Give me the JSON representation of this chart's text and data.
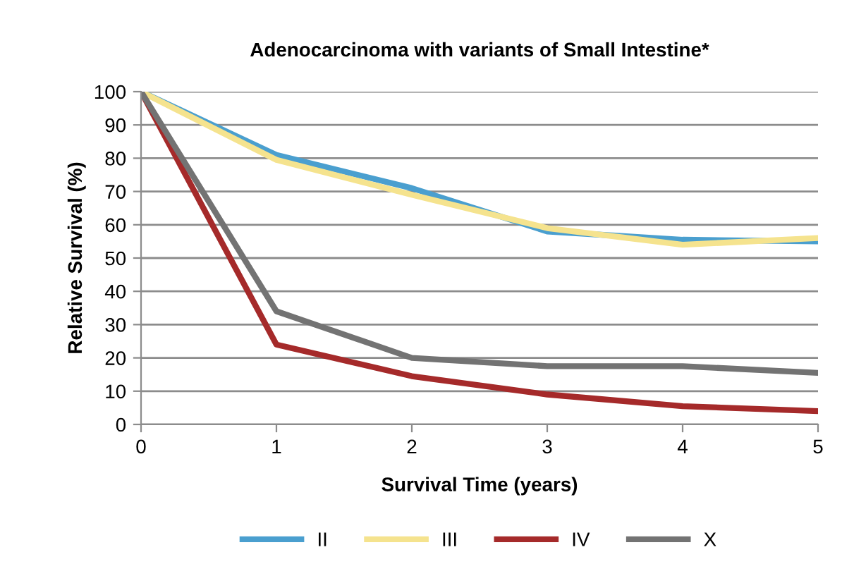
{
  "chart_data": {
    "type": "line",
    "title": "Adenocarcinoma with variants of Small Intestine*",
    "xlabel": "Survival Time (years)",
    "ylabel": "Relative Survival (%)",
    "x": [
      0,
      1,
      2,
      3,
      4,
      5
    ],
    "series": [
      {
        "name": "II",
        "color": "#4a9fcf",
        "values": [
          100,
          81,
          71,
          58,
          55.5,
          55
        ]
      },
      {
        "name": "III",
        "color": "#f5e38e",
        "values": [
          100,
          79.5,
          69,
          59,
          54,
          56
        ]
      },
      {
        "name": "IV",
        "color": "#a52a2a",
        "values": [
          100,
          24,
          14.5,
          9,
          5.5,
          4
        ]
      },
      {
        "name": "X",
        "color": "#737373",
        "values": [
          100,
          34,
          20,
          17.5,
          17.5,
          15.5
        ]
      }
    ],
    "xlim": [
      0,
      5
    ],
    "xticks": [
      0,
      1,
      2,
      3,
      4,
      5
    ],
    "ylim": [
      0,
      100
    ],
    "yticks": [
      0,
      10,
      20,
      30,
      40,
      50,
      60,
      70,
      80,
      90,
      100
    ],
    "grid": "y",
    "legend": "bottom",
    "marker": "none",
    "line_style": "solid"
  }
}
